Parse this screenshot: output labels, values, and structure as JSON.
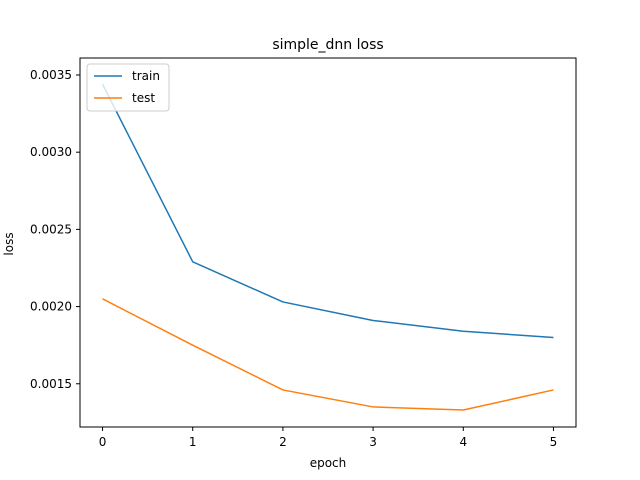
{
  "chart_data": {
    "type": "line",
    "title": "simple_dnn loss",
    "xlabel": "epoch",
    "ylabel": "loss",
    "x": [
      0,
      1,
      2,
      3,
      4,
      5
    ],
    "xticks": [
      "0",
      "1",
      "2",
      "3",
      "4",
      "5"
    ],
    "yticks": [
      {
        "value": 0.0015,
        "label": "0.0015"
      },
      {
        "value": 0.002,
        "label": "0.0020"
      },
      {
        "value": 0.0025,
        "label": "0.0025"
      },
      {
        "value": 0.003,
        "label": "0.0030"
      },
      {
        "value": 0.0035,
        "label": "0.0035"
      }
    ],
    "xlim": [
      -0.25,
      5.25
    ],
    "ylim": [
      0.00122,
      0.00361
    ],
    "grid": false,
    "legend_position": "top-left",
    "series": [
      {
        "name": "train",
        "color": "#1f77b4",
        "values": [
          0.00344,
          0.00229,
          0.00203,
          0.00191,
          0.00184,
          0.0018
        ]
      },
      {
        "name": "test",
        "color": "#ff7f0e",
        "values": [
          0.00205,
          0.00175,
          0.00146,
          0.00135,
          0.00133,
          0.00146
        ]
      }
    ]
  }
}
